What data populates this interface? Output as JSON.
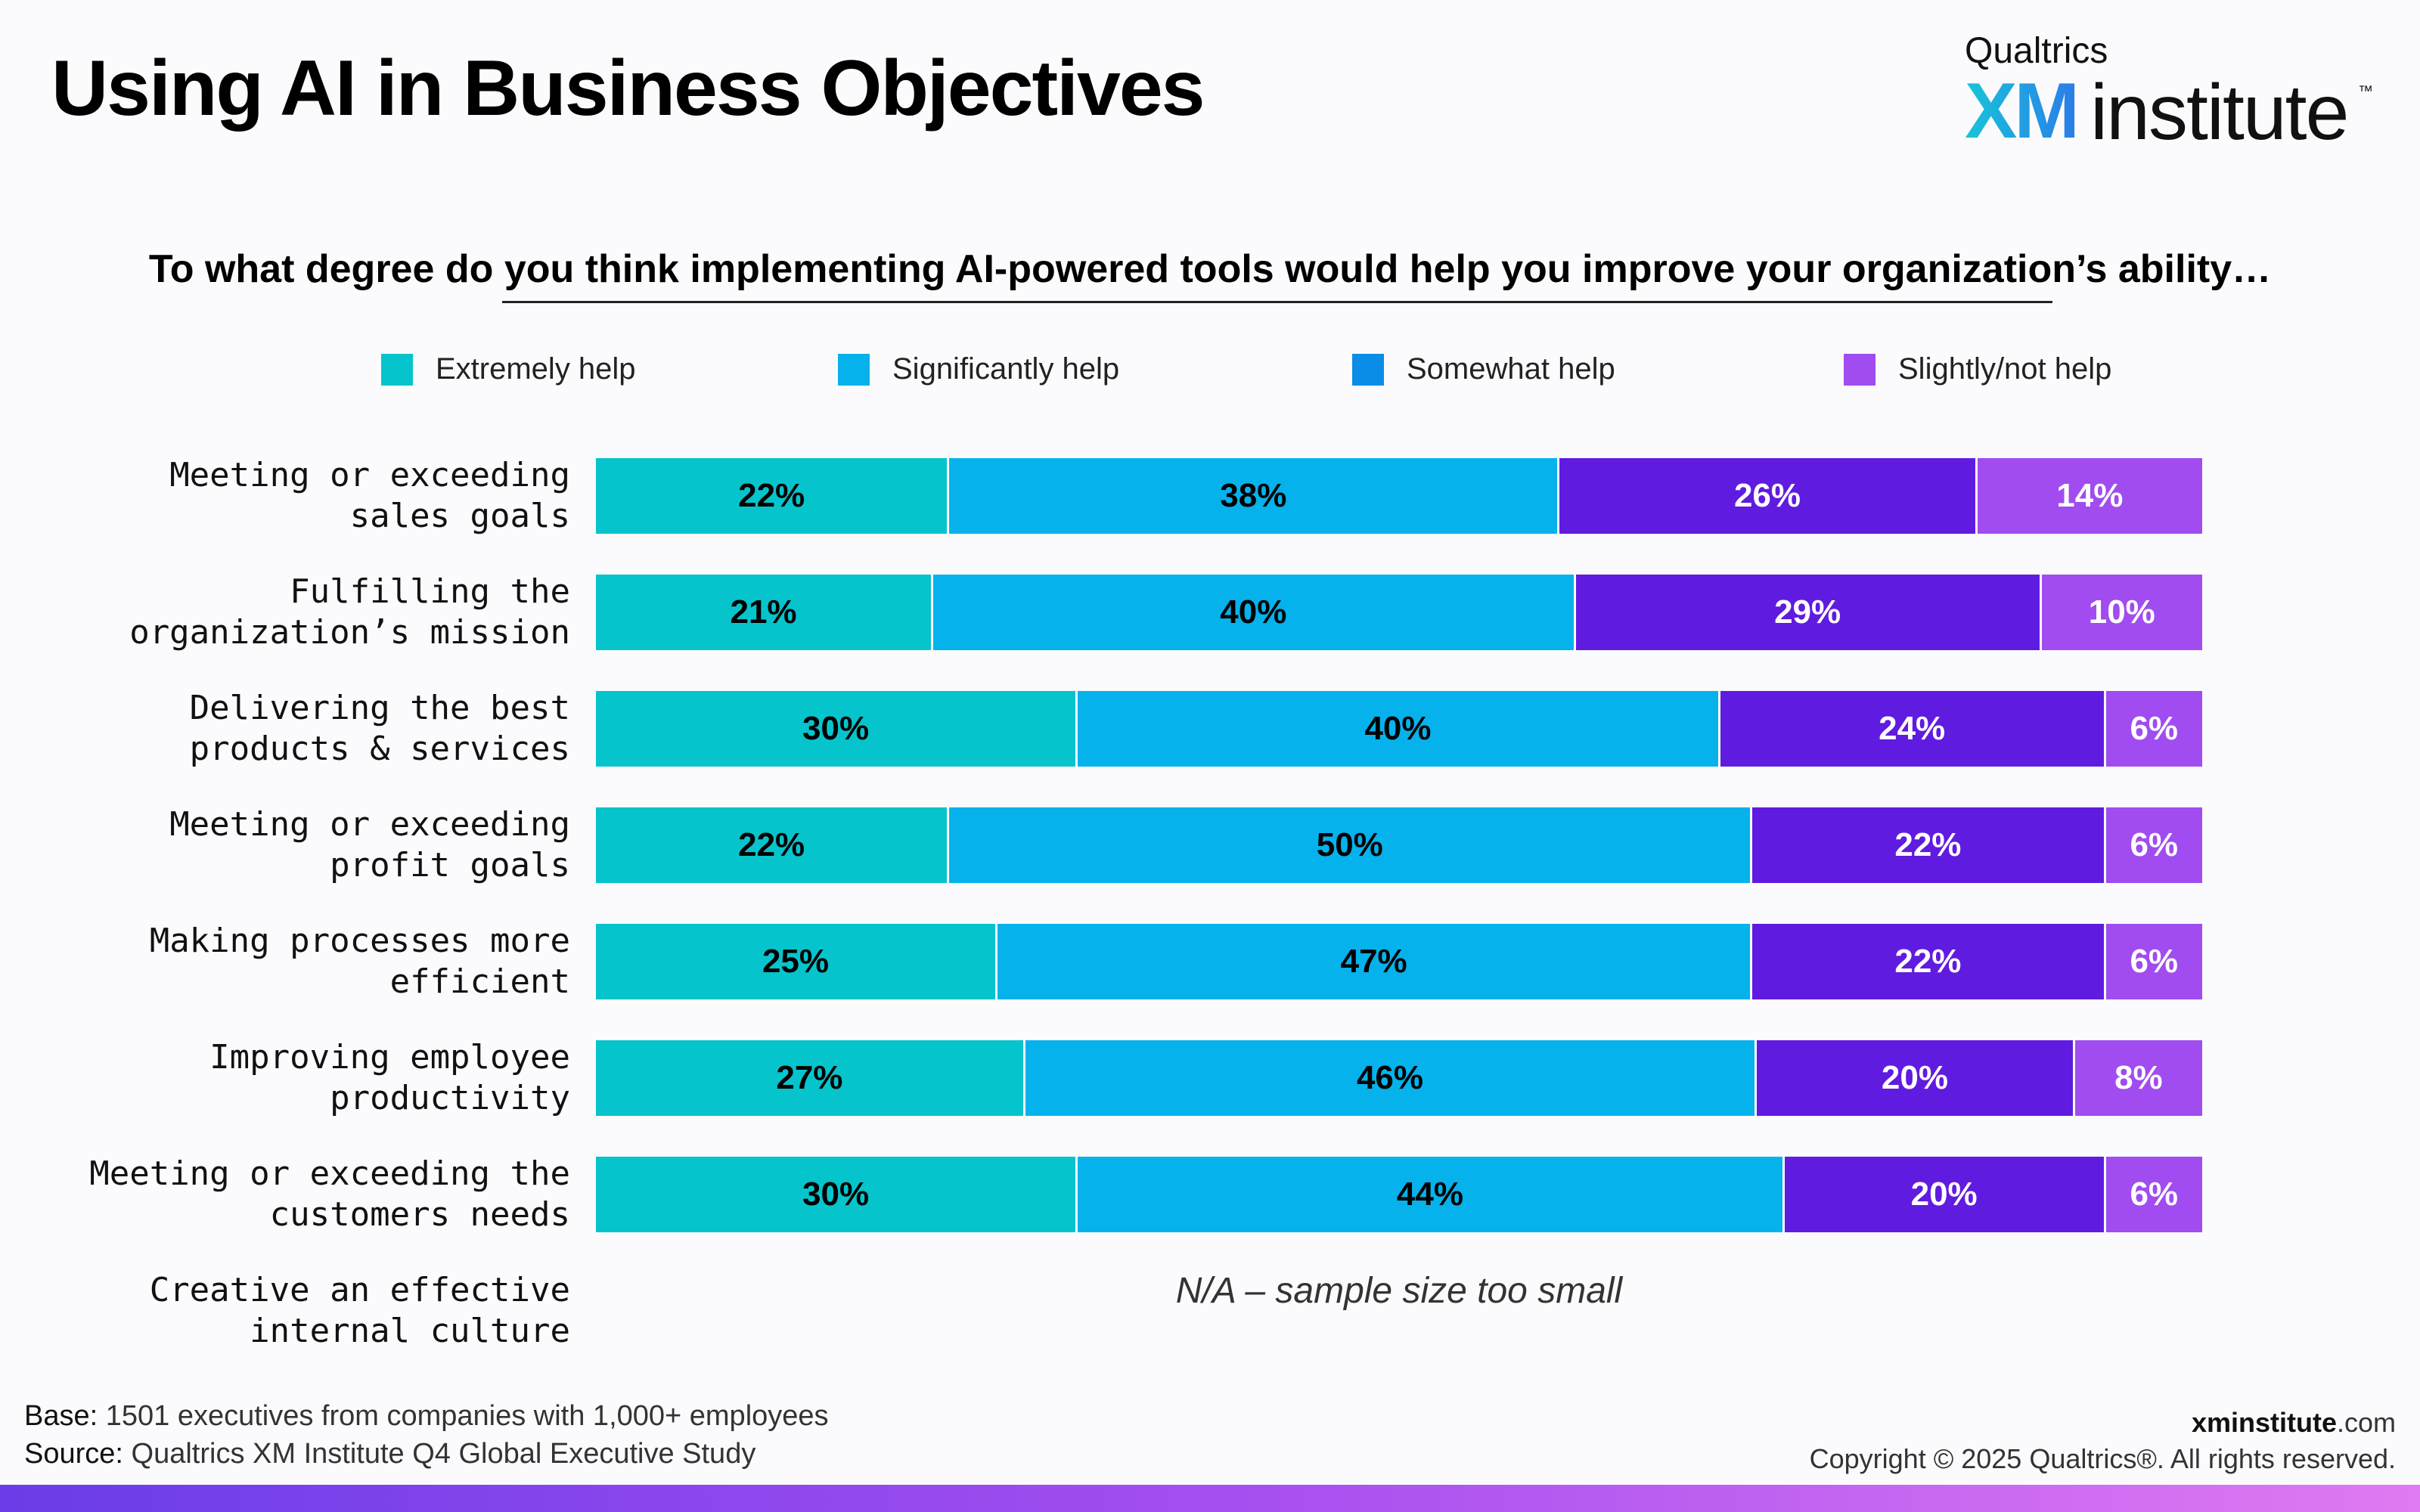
{
  "header": {
    "title": "Using AI in Business Objectives"
  },
  "logo": {
    "top": "Qualtrics",
    "xm": "XM",
    "institute": "institute",
    "tm": "™"
  },
  "chart_data": {
    "type": "bar",
    "orientation": "horizontal",
    "stacked": true,
    "title": "To what degree do you think implementing AI-powered tools would help you improve your organization’s ability…",
    "legend_position": "top",
    "categories": [
      "Meeting or exceeding sales goals",
      "Fulfilling the organization’s mission",
      "Delivering the best products & services",
      "Meeting or exceeding profit goals",
      "Making processes more efficient",
      "Improving employee productivity",
      "Meeting or exceeding the customers needs",
      "Creative an effective internal culture"
    ],
    "series": [
      {
        "name": "Extremely help",
        "color": "#06c4cc",
        "text_color": "#000000",
        "values": [
          22,
          21,
          30,
          22,
          25,
          27,
          30,
          null
        ]
      },
      {
        "name": "Significantly help",
        "color": "#05b2ec",
        "text_color": "#000000",
        "values": [
          38,
          40,
          40,
          50,
          47,
          46,
          44,
          null
        ]
      },
      {
        "name": "Somewhat help",
        "color": "#601be0",
        "text_color": "#ffffff",
        "values": [
          26,
          29,
          24,
          22,
          22,
          20,
          20,
          null
        ]
      },
      {
        "name": "Slightly/not help",
        "color": "#a04cf0",
        "text_color": "#ffffff",
        "values": [
          14,
          10,
          6,
          6,
          6,
          8,
          6,
          null
        ]
      }
    ],
    "legend_swatch_colors": [
      "#06c4cc",
      "#05b2ec",
      "#0a8de6",
      "#a04cf0"
    ],
    "value_suffix": "%",
    "na_note": "N/A – sample size too small"
  },
  "row_labels": [
    [
      "Meeting or exceeding",
      "sales goals"
    ],
    [
      "Fulfilling the",
      "organization’s mission"
    ],
    [
      "Delivering the best",
      "products & services"
    ],
    [
      "Meeting or exceeding",
      "profit goals"
    ],
    [
      "Making processes more",
      "efficient"
    ],
    [
      "Improving employee",
      "productivity"
    ],
    [
      "Meeting or exceeding the",
      "customers needs"
    ],
    [
      "Creative an effective",
      "internal culture"
    ]
  ],
  "footer": {
    "base_label": "Base:",
    "base_text": " 1501 executives from companies with 1,000+ employees",
    "source_label": "Source:",
    "source_text": " Qualtrics XM Institute Q4 Global Executive Study",
    "site_bold": "xminstitute",
    "site_rest": ".com",
    "copyright": "Copyright © 2025 Qualtrics®. All rights reserved."
  }
}
